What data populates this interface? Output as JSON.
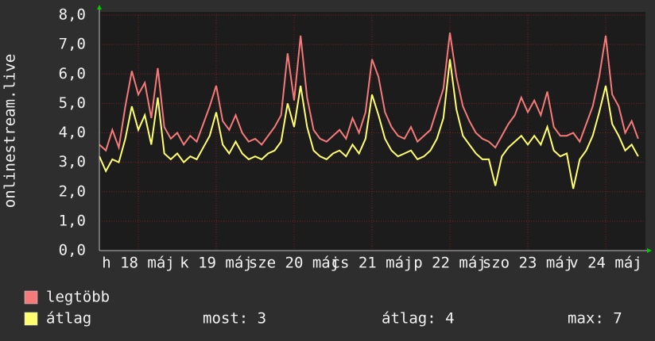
{
  "chart_data": {
    "type": "line",
    "y_label": "onlinestream.live",
    "x": [
      0,
      2,
      4,
      6,
      8,
      10,
      12,
      14,
      16,
      18,
      20,
      22,
      24,
      26,
      28,
      30,
      32,
      34,
      36,
      38,
      40,
      42,
      44,
      46,
      48,
      50,
      52,
      54,
      56,
      58,
      60,
      62,
      64,
      66,
      68,
      70,
      72,
      74,
      76,
      78,
      80,
      82,
      84,
      86,
      88,
      90,
      92,
      94,
      96,
      98,
      100,
      102,
      104,
      106,
      108,
      110,
      112,
      114,
      116,
      118,
      120,
      122,
      124,
      126,
      128,
      130,
      132,
      134,
      136,
      138,
      140,
      142,
      144,
      146,
      148,
      150,
      152,
      154,
      156,
      158,
      160,
      162,
      164,
      166
    ],
    "xlim": [
      0,
      168
    ],
    "xticks": [
      {
        "value": 12,
        "label": "h 18 máj"
      },
      {
        "value": 36,
        "label": "k 19 máj"
      },
      {
        "value": 60,
        "label": "sze 20 máj"
      },
      {
        "value": 84,
        "label": "cs 21 máj"
      },
      {
        "value": 108,
        "label": "p 22 máj"
      },
      {
        "value": 132,
        "label": "szo 23 máj"
      },
      {
        "value": 156,
        "label": "v 24 máj"
      }
    ],
    "ylim": [
      0,
      8
    ],
    "yticks": [
      {
        "value": 0,
        "label": "0,0"
      },
      {
        "value": 1,
        "label": "1,0"
      },
      {
        "value": 2,
        "label": "2,0"
      },
      {
        "value": 3,
        "label": "3,0"
      },
      {
        "value": 4,
        "label": "4,0"
      },
      {
        "value": 5,
        "label": "5,0"
      },
      {
        "value": 6,
        "label": "6,0"
      },
      {
        "value": 7,
        "label": "7,0"
      },
      {
        "value": 8,
        "label": "8,0"
      }
    ],
    "grid": true,
    "series": [
      {
        "name": "legtöbb",
        "color": "#f57a7a",
        "values": [
          3.6,
          3.4,
          4.1,
          3.5,
          4.9,
          6.1,
          5.3,
          5.7,
          4.5,
          6.2,
          4.2,
          3.8,
          4.0,
          3.6,
          3.9,
          3.7,
          4.3,
          4.9,
          5.6,
          4.4,
          4.1,
          4.6,
          4.0,
          3.7,
          3.8,
          3.6,
          3.9,
          4.2,
          4.6,
          6.7,
          5.1,
          7.3,
          5.2,
          4.1,
          3.8,
          3.7,
          3.9,
          4.1,
          3.8,
          4.5,
          4.0,
          4.7,
          6.5,
          5.9,
          4.7,
          4.2,
          3.9,
          3.8,
          4.2,
          3.7,
          3.9,
          4.1,
          4.8,
          5.5,
          7.4,
          5.9,
          4.9,
          4.4,
          4.0,
          3.8,
          3.7,
          3.5,
          3.9,
          4.3,
          4.6,
          5.2,
          4.7,
          5.1,
          4.6,
          5.4,
          4.2,
          3.9,
          3.9,
          4.0,
          3.7,
          4.3,
          4.9,
          5.9,
          7.3,
          5.3,
          4.9,
          4.0,
          4.4,
          3.8
        ]
      },
      {
        "name": "átlag",
        "color": "#ffff70",
        "values": [
          3.2,
          2.7,
          3.1,
          3.0,
          3.8,
          4.9,
          4.1,
          4.6,
          3.6,
          5.2,
          3.3,
          3.1,
          3.3,
          3.0,
          3.2,
          3.1,
          3.5,
          3.9,
          4.7,
          3.6,
          3.3,
          3.7,
          3.3,
          3.1,
          3.2,
          3.1,
          3.3,
          3.4,
          3.7,
          5.0,
          4.2,
          5.6,
          4.2,
          3.4,
          3.2,
          3.1,
          3.3,
          3.4,
          3.2,
          3.6,
          3.3,
          3.8,
          5.3,
          4.6,
          3.8,
          3.4,
          3.2,
          3.3,
          3.4,
          3.1,
          3.2,
          3.4,
          3.8,
          4.5,
          6.5,
          4.8,
          3.9,
          3.6,
          3.3,
          3.1,
          3.1,
          2.2,
          3.2,
          3.5,
          3.7,
          3.9,
          3.6,
          3.9,
          3.6,
          4.2,
          3.4,
          3.2,
          3.3,
          2.1,
          3.1,
          3.4,
          3.9,
          4.7,
          5.6,
          4.3,
          3.9,
          3.4,
          3.6,
          3.2
        ]
      }
    ],
    "stats": [
      "most: 3",
      "átlag: 4",
      "max: 7"
    ]
  }
}
